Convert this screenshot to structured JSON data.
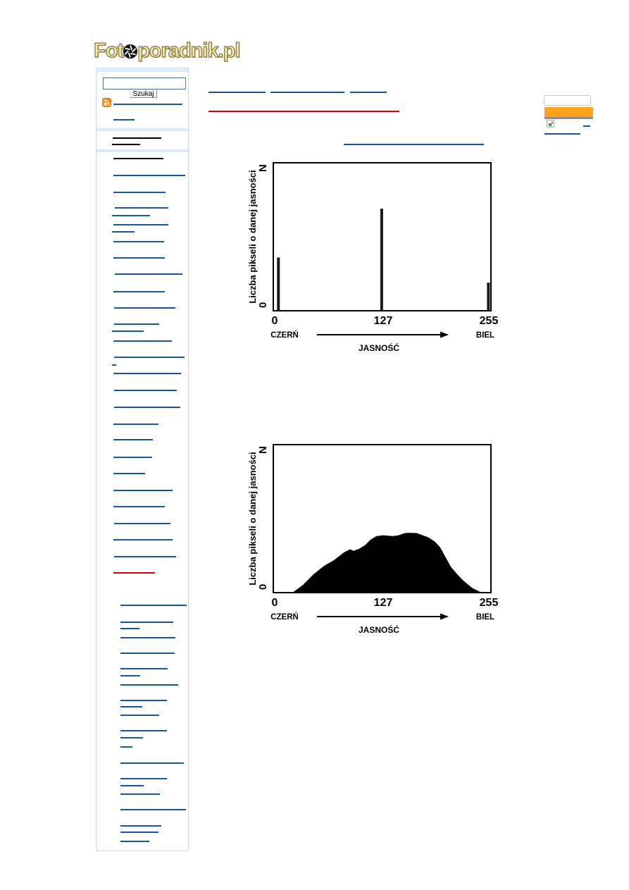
{
  "logo": {
    "prefix": "Fot",
    "suffix": "poradnik.pl"
  },
  "search": {
    "input_value": "",
    "button_label": "Szukaj"
  },
  "link_colors": {
    "blue": "#1457a0",
    "black": "#000000",
    "red": "#e00000"
  },
  "link_bars": {
    "sidebar": [
      [
        147,
        161,
        98,
        "blue"
      ],
      [
        169,
        161,
        30,
        "blue"
      ],
      [
        195,
        160,
        69,
        "black"
      ],
      [
        204,
        159,
        40,
        "black"
      ],
      [
        224,
        161,
        71,
        "black"
      ],
      [
        248,
        161,
        102,
        "blue"
      ],
      [
        272,
        161,
        74,
        "blue"
      ],
      [
        294,
        163,
        76,
        "blue"
      ],
      [
        305,
        159,
        54,
        "blue"
      ],
      [
        318,
        161,
        78,
        "blue"
      ],
      [
        328,
        159,
        32,
        "blue"
      ],
      [
        342,
        161,
        72,
        "blue"
      ],
      [
        365,
        161,
        73,
        "blue"
      ],
      [
        388,
        163,
        96,
        "blue"
      ],
      [
        413,
        161,
        73,
        "blue"
      ],
      [
        436,
        162,
        87,
        "blue"
      ],
      [
        459,
        162,
        64,
        "blue"
      ],
      [
        469,
        159,
        45,
        "blue"
      ],
      [
        483,
        161,
        83,
        "blue"
      ],
      [
        506,
        162,
        100,
        "blue"
      ],
      [
        517,
        159,
        6,
        "blue"
      ],
      [
        529,
        161,
        96,
        "blue"
      ],
      [
        553,
        162,
        89,
        "blue"
      ],
      [
        577,
        162,
        94,
        "blue"
      ],
      [
        601,
        161,
        64,
        "blue"
      ],
      [
        623,
        161,
        56,
        "blue"
      ],
      [
        648,
        161,
        55,
        "blue"
      ],
      [
        671,
        161,
        45,
        "blue"
      ],
      [
        695,
        161,
        84,
        "blue"
      ],
      [
        718,
        161,
        73,
        "blue"
      ],
      [
        742,
        162,
        80,
        "blue"
      ],
      [
        765,
        161,
        84,
        "blue"
      ],
      [
        789,
        162,
        88,
        "blue"
      ],
      [
        812,
        161,
        59,
        "red"
      ],
      [
        858,
        171,
        94,
        "blue"
      ],
      [
        882,
        171,
        75,
        "blue"
      ],
      [
        891,
        171,
        27,
        "blue"
      ],
      [
        904,
        171,
        78,
        "blue"
      ],
      [
        926,
        171,
        77,
        "blue"
      ],
      [
        948,
        171,
        67,
        "blue"
      ],
      [
        958,
        171,
        28,
        "blue"
      ],
      [
        971,
        171,
        82,
        "blue"
      ],
      [
        993,
        171,
        66,
        "blue"
      ],
      [
        1002,
        171,
        31,
        "blue"
      ],
      [
        1014,
        171,
        55,
        "blue"
      ],
      [
        1036,
        171,
        66,
        "blue"
      ],
      [
        1046,
        171,
        32,
        "blue"
      ],
      [
        1059,
        171,
        17,
        "blue"
      ],
      [
        1082,
        171,
        90,
        "blue"
      ],
      [
        1104,
        171,
        66,
        "blue"
      ],
      [
        1114,
        171,
        33,
        "blue"
      ],
      [
        1126,
        171,
        56,
        "blue"
      ],
      [
        1148,
        171,
        93,
        "blue"
      ],
      [
        1171,
        171,
        58,
        "blue"
      ],
      [
        1180,
        171,
        54,
        "blue"
      ],
      [
        1193,
        171,
        41,
        "blue"
      ]
    ],
    "content": [
      [
        130,
        296,
        81,
        "blue"
      ],
      [
        130,
        384,
        105,
        "blue"
      ],
      [
        130,
        497,
        52,
        "blue"
      ],
      [
        157,
        296,
        271,
        "red"
      ],
      [
        204,
        488,
        199,
        "blue"
      ]
    ],
    "widget": [
      [
        178,
        828,
        10,
        "blue"
      ],
      [
        189,
        773,
        51,
        "blue"
      ]
    ]
  },
  "widget": {
    "orange_color": "#ffa21c",
    "gray_color": "#8c8c8c"
  },
  "chart_data": [
    {
      "type": "bar",
      "title": "",
      "ylabel": "Liczba pikseli o danej jasności",
      "xlabel": "JASNOŚĆ",
      "y_top_label": "N",
      "y_bottom_label": "0",
      "x_left_caption": "CZERŃ",
      "x_right_caption": "BIEL",
      "xlim": [
        0,
        255
      ],
      "x_ticks": [
        "0",
        "127",
        "255"
      ],
      "grid": false,
      "bars_note": "spike x in 0-255 brightness units, height as fraction of N",
      "bars": [
        {
          "x": 6,
          "height": 0.36
        },
        {
          "x": 127,
          "height": 0.69
        },
        {
          "x": 252,
          "height": 0.19
        }
      ]
    },
    {
      "type": "area",
      "title": "",
      "ylabel": "Liczba pikseli o danej jasności",
      "xlabel": "JASNOŚĆ",
      "y_top_label": "N",
      "y_bottom_label": "0",
      "x_left_caption": "CZERŃ",
      "x_right_caption": "BIEL",
      "xlim": [
        0,
        255
      ],
      "x_ticks": [
        "0",
        "127",
        "255"
      ],
      "grid": false,
      "points_note": "x in 0-255 brightness units, y as fraction of N",
      "points": [
        [
          23,
          0
        ],
        [
          35,
          0.05
        ],
        [
          47,
          0.12
        ],
        [
          60,
          0.18
        ],
        [
          72,
          0.22
        ],
        [
          83,
          0.27
        ],
        [
          90,
          0.29
        ],
        [
          94,
          0.28
        ],
        [
          101,
          0.295
        ],
        [
          108,
          0.32
        ],
        [
          114,
          0.355
        ],
        [
          121,
          0.38
        ],
        [
          129,
          0.385
        ],
        [
          140,
          0.38
        ],
        [
          147,
          0.385
        ],
        [
          154,
          0.4
        ],
        [
          160,
          0.402
        ],
        [
          168,
          0.4
        ],
        [
          175,
          0.385
        ],
        [
          182,
          0.37
        ],
        [
          189,
          0.343
        ],
        [
          195,
          0.306
        ],
        [
          201,
          0.243
        ],
        [
          208,
          0.171
        ],
        [
          215,
          0.124
        ],
        [
          223,
          0.076
        ],
        [
          233,
          0.029
        ],
        [
          243,
          0
        ]
      ]
    }
  ]
}
